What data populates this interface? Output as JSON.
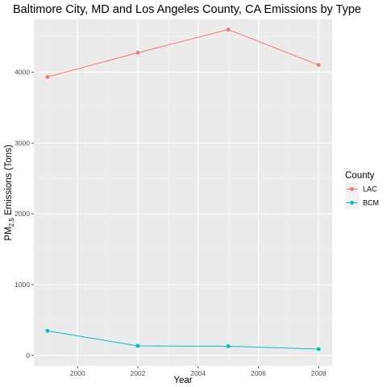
{
  "chart_data": {
    "type": "line",
    "title": "Baltimore City, MD and Los Angeles County, CA Emissions by Type",
    "xlabel": "Year",
    "ylabel_main": "PM",
    "ylabel_sub": "2.5",
    "ylabel_rest": " Emissions (Tons)",
    "x": [
      1999,
      2002,
      2005,
      2008
    ],
    "x_ticks": [
      2000,
      2002,
      2004,
      2006,
      2008
    ],
    "x_tick_labels": [
      "2000",
      "2002",
      "2004",
      "2006",
      "2008"
    ],
    "y_ticks": [
      0,
      1000,
      2000,
      3000,
      4000
    ],
    "y_tick_labels": [
      "0",
      "1000",
      "2000",
      "3000",
      "4000"
    ],
    "xlim": [
      1998.55,
      2008.45
    ],
    "ylim": [
      -150,
      4745
    ],
    "grid": true,
    "legend": {
      "title": "County",
      "placement": "right"
    },
    "series": [
      {
        "name": "LAC",
        "color": "#f8766d",
        "values": [
          3931,
          4274,
          4601,
          4101
        ]
      },
      {
        "name": "BCM",
        "color": "#00bfc4",
        "values": [
          347,
          134,
          130,
          89
        ]
      }
    ]
  }
}
